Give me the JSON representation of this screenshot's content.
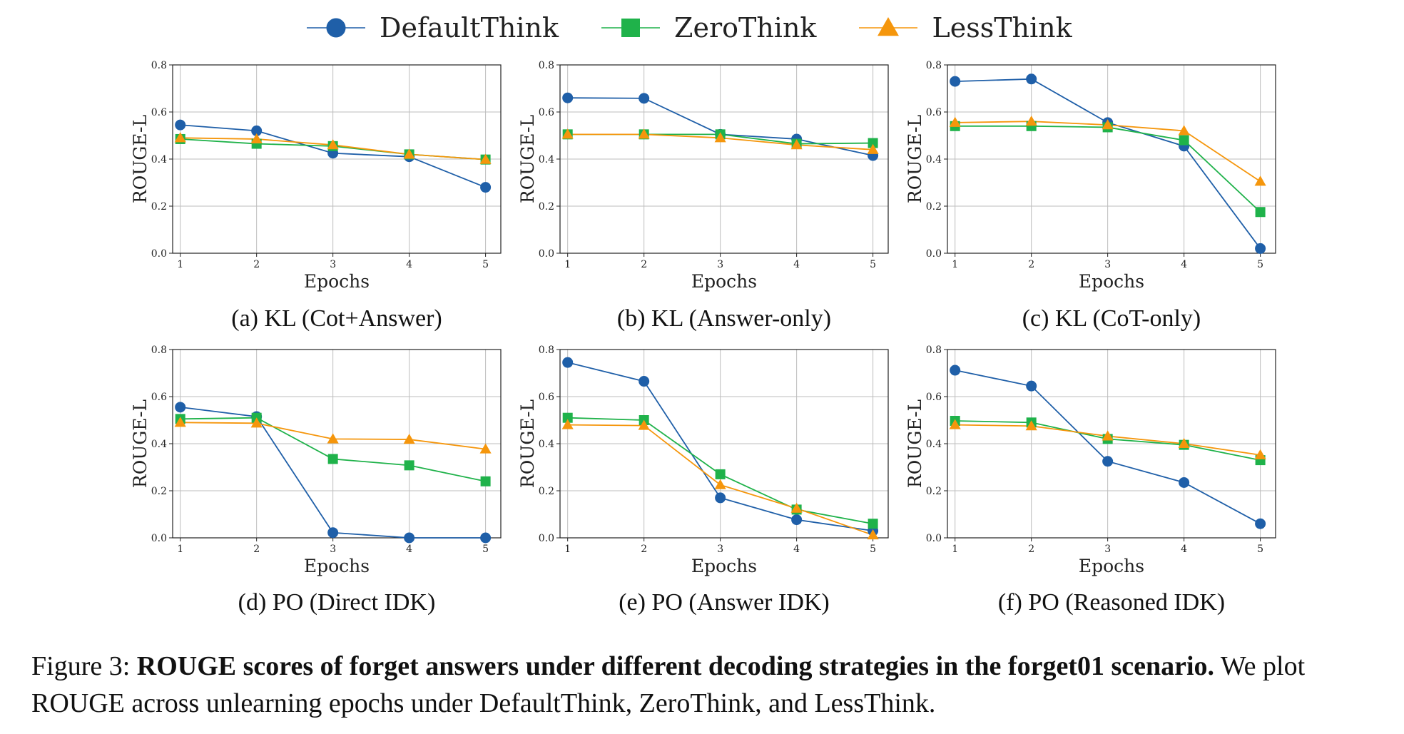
{
  "legend": [
    {
      "name": "DefaultThink",
      "color": "#1f5fa8",
      "marker": "circle"
    },
    {
      "name": "ZeroThink",
      "color": "#1fb24a",
      "marker": "square"
    },
    {
      "name": "LessThink",
      "color": "#f5960c",
      "marker": "triangle"
    }
  ],
  "caption": {
    "prefix": "Figure 3: ",
    "bold": "ROUGE scores of forget answers under different decoding strategies in the forget01 scenario.",
    "rest": " We plot ROUGE across unlearning epochs under DefaultThink, ZeroThink, and LessThink."
  },
  "chart_data": [
    {
      "type": "line",
      "subcaption": "(a) KL (Cot+Answer)",
      "xlabel": "Epochs",
      "ylabel": "ROUGE-L",
      "x": [
        1,
        2,
        3,
        4,
        5
      ],
      "xlim": [
        0.9,
        5.2
      ],
      "ylim": [
        0,
        0.8
      ],
      "yticks": [
        "0.0",
        "0.2",
        "0.4",
        "0.6",
        "0.8"
      ],
      "grid": true,
      "series": [
        {
          "name": "DefaultThink",
          "values": [
            0.545,
            0.52,
            0.425,
            0.41,
            0.28
          ]
        },
        {
          "name": "ZeroThink",
          "values": [
            0.485,
            0.465,
            0.455,
            0.42,
            0.398
          ]
        },
        {
          "name": "LessThink",
          "values": [
            0.49,
            0.485,
            0.46,
            0.42,
            0.398
          ]
        }
      ]
    },
    {
      "type": "line",
      "subcaption": "(b) KL (Answer-only)",
      "xlabel": "Epochs",
      "ylabel": "ROUGE-L",
      "x": [
        1,
        2,
        3,
        4,
        5
      ],
      "xlim": [
        0.9,
        5.2
      ],
      "ylim": [
        0,
        0.8
      ],
      "yticks": [
        "0.0",
        "0.2",
        "0.4",
        "0.6",
        "0.8"
      ],
      "grid": true,
      "series": [
        {
          "name": "DefaultThink",
          "values": [
            0.66,
            0.658,
            0.505,
            0.485,
            0.415
          ]
        },
        {
          "name": "ZeroThink",
          "values": [
            0.505,
            0.505,
            0.505,
            0.465,
            0.468
          ]
        },
        {
          "name": "LessThink",
          "values": [
            0.505,
            0.505,
            0.49,
            0.46,
            0.44
          ]
        }
      ]
    },
    {
      "type": "line",
      "subcaption": "(c) KL (CoT-only)",
      "xlabel": "Epochs",
      "ylabel": "ROUGE-L",
      "x": [
        1,
        2,
        3,
        4,
        5
      ],
      "xlim": [
        0.9,
        5.2
      ],
      "ylim": [
        0,
        0.8
      ],
      "yticks": [
        "0.0",
        "0.2",
        "0.4",
        "0.6",
        "0.8"
      ],
      "grid": true,
      "series": [
        {
          "name": "DefaultThink",
          "values": [
            0.73,
            0.74,
            0.555,
            0.455,
            0.02
          ]
        },
        {
          "name": "ZeroThink",
          "values": [
            0.54,
            0.54,
            0.535,
            0.48,
            0.175
          ]
        },
        {
          "name": "LessThink",
          "values": [
            0.555,
            0.56,
            0.545,
            0.52,
            0.305
          ]
        }
      ]
    },
    {
      "type": "line",
      "subcaption": "(d) PO (Direct IDK)",
      "xlabel": "Epochs",
      "ylabel": "ROUGE-L",
      "x": [
        1,
        2,
        3,
        4,
        5
      ],
      "xlim": [
        0.9,
        5.2
      ],
      "ylim": [
        0,
        0.8
      ],
      "yticks": [
        "0.0",
        "0.2",
        "0.4",
        "0.6",
        "0.8"
      ],
      "grid": true,
      "series": [
        {
          "name": "DefaultThink",
          "values": [
            0.555,
            0.515,
            0.022,
            0.0,
            0.0
          ]
        },
        {
          "name": "ZeroThink",
          "values": [
            0.505,
            0.51,
            0.335,
            0.308,
            0.24
          ]
        },
        {
          "name": "LessThink",
          "values": [
            0.49,
            0.487,
            0.42,
            0.418,
            0.377
          ]
        }
      ]
    },
    {
      "type": "line",
      "subcaption": "(e) PO (Answer IDK)",
      "xlabel": "Epochs",
      "ylabel": "ROUGE-L",
      "x": [
        1,
        2,
        3,
        4,
        5
      ],
      "xlim": [
        0.9,
        5.2
      ],
      "ylim": [
        0,
        0.8
      ],
      "yticks": [
        "0.0",
        "0.2",
        "0.4",
        "0.6",
        "0.8"
      ],
      "grid": true,
      "series": [
        {
          "name": "DefaultThink",
          "values": [
            0.745,
            0.665,
            0.17,
            0.077,
            0.03
          ]
        },
        {
          "name": "ZeroThink",
          "values": [
            0.51,
            0.5,
            0.27,
            0.12,
            0.06
          ]
        },
        {
          "name": "LessThink",
          "values": [
            0.48,
            0.477,
            0.225,
            0.125,
            0.012
          ]
        }
      ]
    },
    {
      "type": "line",
      "subcaption": "(f) PO (Reasoned IDK)",
      "xlabel": "Epochs",
      "ylabel": "ROUGE-L",
      "x": [
        1,
        2,
        3,
        4,
        5
      ],
      "xlim": [
        0.9,
        5.2
      ],
      "ylim": [
        0,
        0.8
      ],
      "yticks": [
        "0.0",
        "0.2",
        "0.4",
        "0.6",
        "0.8"
      ],
      "grid": true,
      "series": [
        {
          "name": "DefaultThink",
          "values": [
            0.712,
            0.645,
            0.325,
            0.235,
            0.06
          ]
        },
        {
          "name": "ZeroThink",
          "values": [
            0.497,
            0.49,
            0.42,
            0.395,
            0.33
          ]
        },
        {
          "name": "LessThink",
          "values": [
            0.48,
            0.475,
            0.432,
            0.4,
            0.352
          ]
        }
      ]
    }
  ]
}
